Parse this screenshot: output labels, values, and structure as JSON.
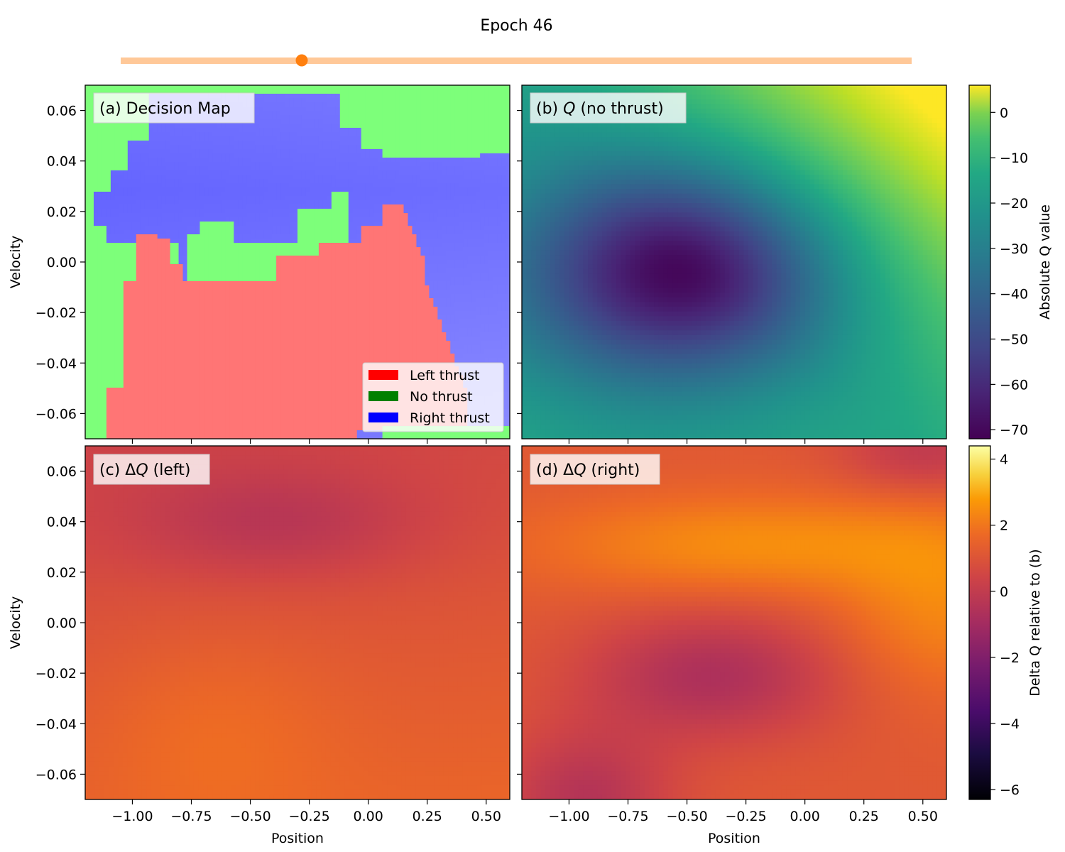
{
  "header": {
    "title": "Epoch 46",
    "slider": {
      "value": 0.23,
      "track_color": "#ffc898",
      "knob_color": "#ff7f0e"
    }
  },
  "axes": {
    "position_label": "Position",
    "velocity_label": "Velocity",
    "x_range": [
      -1.2,
      0.6
    ],
    "y_range": [
      -0.07,
      0.07
    ],
    "x_ticks": [
      -1.0,
      -0.75,
      -0.5,
      -0.25,
      0.0,
      0.25,
      0.5
    ],
    "x_tick_labels": [
      "−1.00",
      "−0.75",
      "−0.50",
      "−0.25",
      "0.00",
      "0.25",
      "0.50"
    ],
    "y_ticks": [
      0.06,
      0.04,
      0.02,
      0.0,
      -0.02,
      -0.04,
      -0.06
    ],
    "y_tick_labels": [
      "0.06",
      "0.04",
      "0.02",
      "0.00",
      "−0.02",
      "−0.04",
      "−0.06"
    ]
  },
  "panels": {
    "a": {
      "label_prefix": "(a) ",
      "label_text": "Decision Map"
    },
    "b": {
      "label_prefix": "(b) ",
      "label_sym": "Q",
      "label_text": " (no thrust)"
    },
    "c": {
      "label_prefix": "(c) Δ",
      "label_sym": "Q",
      "label_text": " (left)"
    },
    "d": {
      "label_prefix": "(d) Δ",
      "label_sym": "Q",
      "label_text": " (right)"
    }
  },
  "legend": [
    {
      "label": "Left thrust",
      "color": "#ff0000"
    },
    {
      "label": "No thrust",
      "color": "#008000"
    },
    {
      "label": "Right thrust",
      "color": "#0000ff"
    }
  ],
  "colorbars": {
    "absolute": {
      "label": "Absolute Q value",
      "colormap": "viridis",
      "range": [
        -72,
        6
      ],
      "ticks": [
        0,
        -10,
        -20,
        -30,
        -40,
        -50,
        -60,
        -70
      ],
      "tick_labels": [
        "0",
        "−10",
        "−20",
        "−30",
        "−40",
        "−50",
        "−60",
        "−70"
      ]
    },
    "delta": {
      "label": "Delta Q relative to (b)",
      "colormap": "inferno",
      "range": [
        -6.3,
        4.4
      ],
      "ticks": [
        4,
        2,
        0,
        -2,
        -4,
        -6
      ],
      "tick_labels": [
        "4",
        "2",
        "0",
        "−2",
        "−4",
        "−6"
      ]
    }
  },
  "chart_data": {
    "type": "heatmap",
    "panels": [
      {
        "id": "a",
        "kind": "categorical",
        "categories": [
          "Left thrust",
          "No thrust",
          "Right thrust"
        ]
      },
      {
        "id": "b",
        "kind": "absolute",
        "min_at": [
          -0.53,
          0.0
        ],
        "min_value": -70,
        "max_at": [
          0.6,
          0.07
        ],
        "max_value": 5
      },
      {
        "id": "c",
        "kind": "delta",
        "min_value": -1.6,
        "max_value": 1.4
      },
      {
        "id": "d",
        "kind": "delta",
        "min_value": -1.9,
        "max_value": 1.9
      }
    ]
  }
}
